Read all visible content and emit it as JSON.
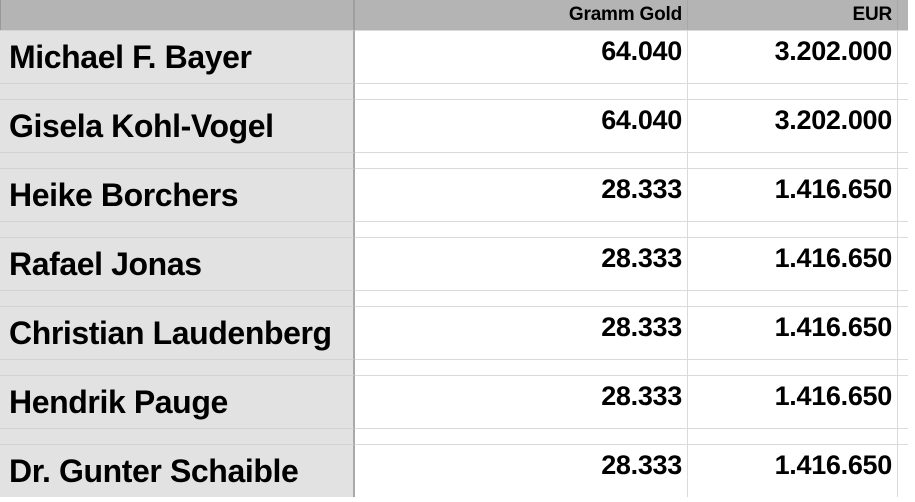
{
  "table": {
    "columns": [
      {
        "label": ""
      },
      {
        "label": "Gramm Gold"
      },
      {
        "label": "EUR"
      }
    ],
    "rows": [
      {
        "name": "Michael F. Bayer",
        "gold": "64.040",
        "eur": "3.202.000"
      },
      {
        "name": "Gisela Kohl-Vogel",
        "gold": "64.040",
        "eur": "3.202.000"
      },
      {
        "name": "Heike Borchers",
        "gold": "28.333",
        "eur": "1.416.650"
      },
      {
        "name": "Rafael Jonas",
        "gold": "28.333",
        "eur": "1.416.650"
      },
      {
        "name": "Christian Laudenberg",
        "gold": "28.333",
        "eur": "1.416.650"
      },
      {
        "name": "Hendrik Pauge",
        "gold": "28.333",
        "eur": "1.416.650"
      },
      {
        "name": "Dr. Gunter Schaible",
        "gold": "28.333",
        "eur": "1.416.650"
      }
    ],
    "colors": {
      "header_bg": "#b4b4b4",
      "name_column_bg": "#e2e2e2",
      "cell_bg": "#ffffff",
      "grid_line": "#dadada",
      "name_grid_line": "#d2d2d2",
      "column_divider": "#a9a9a9",
      "text": "#000000"
    }
  }
}
